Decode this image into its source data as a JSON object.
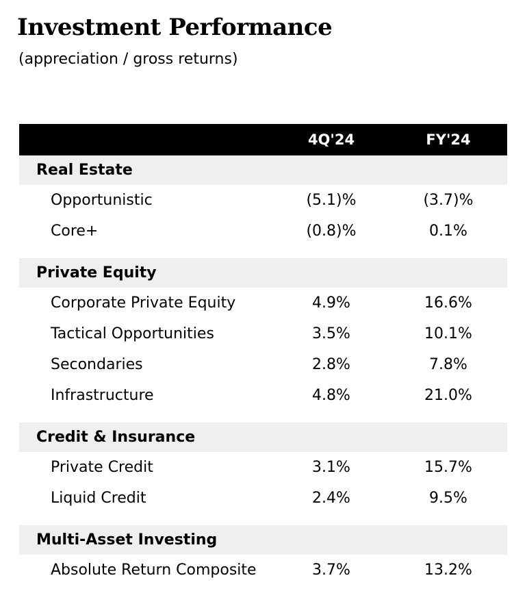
{
  "title": "Investment Performance",
  "subtitle": "(appreciation / gross returns)",
  "columns": [
    "4Q'24",
    "FY'24"
  ],
  "sections": [
    {
      "label": "Real Estate",
      "rows": [
        {
          "label": "Opportunistic",
          "q": "(5.1)%",
          "fy": "(3.7)%"
        },
        {
          "label": "Core+",
          "q": "(0.8)%",
          "fy": "0.1%"
        }
      ]
    },
    {
      "label": "Private Equity",
      "rows": [
        {
          "label": "Corporate Private Equity",
          "q": "4.9%",
          "fy": "16.6%"
        },
        {
          "label": "Tactical Opportunities",
          "q": "3.5%",
          "fy": "10.1%"
        },
        {
          "label": "Secondaries",
          "q": "2.8%",
          "fy": "7.8%"
        },
        {
          "label": "Infrastructure",
          "q": "4.8%",
          "fy": "21.0%"
        }
      ]
    },
    {
      "label": "Credit & Insurance",
      "rows": [
        {
          "label": "Private Credit",
          "q": "3.1%",
          "fy": "15.7%"
        },
        {
          "label": "Liquid Credit",
          "q": "2.4%",
          "fy": "9.5%"
        }
      ]
    },
    {
      "label": "Multi-Asset Investing",
      "rows": [
        {
          "label": "Absolute Return Composite",
          "q": "3.7%",
          "fy": "13.2%"
        }
      ]
    }
  ]
}
